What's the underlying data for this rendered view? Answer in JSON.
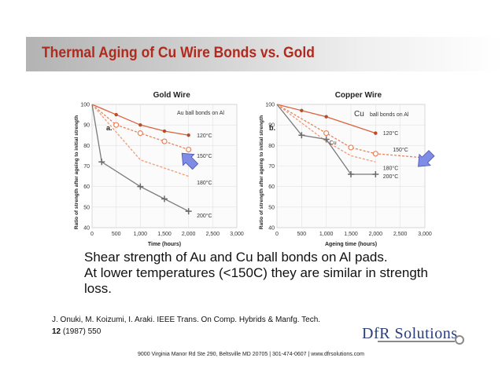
{
  "slide": {
    "title": "Thermal Aging of Cu Wire Bonds vs. Gold",
    "caption": [
      "Shear strength of Au and Cu ball bonds on Al pads.",
      "At lower temperatures (<150C) they are similar in strength",
      "loss."
    ],
    "citation": {
      "authors": "J. Onuki, M. Koizumi, I. Araki. IEEE Trans. On Comp. Hybrids & Manfg. Tech.",
      "volume": "12",
      "rest": " (1987) 550"
    },
    "footer": "9000 Virginia Manor Rd Ste 290, Beltsville MD 20705 | 301-474-0607 | www.dfrsolutions.com",
    "logo": "DfR Solutions"
  },
  "chart_data": [
    {
      "type": "line",
      "title": "Gold Wire",
      "subtitle": "Au ball bonds on Al",
      "panel_label": "a.",
      "xlabel": "Time (hours)",
      "ylabel": "Ratio of strength after ageing to initial strength",
      "xlim": [
        0,
        3000
      ],
      "ylim": [
        40,
        100
      ],
      "xticks": [
        0,
        500,
        1000,
        1500,
        2000,
        2500,
        3000
      ],
      "xtick_labels": [
        "0",
        "500",
        "1,000",
        "1,500",
        "2,000",
        "2,500",
        "3,000"
      ],
      "yticks": [
        40,
        50,
        60,
        70,
        80,
        90,
        100
      ],
      "grid": true,
      "series": [
        {
          "name": "120°C",
          "style": "solid",
          "color": "#d9623b",
          "marker": "dot",
          "x": [
            0,
            500,
            1000,
            1500,
            2000
          ],
          "y": [
            100,
            95,
            90,
            87,
            85
          ],
          "label_at": [
            2170,
            85
          ]
        },
        {
          "name": "150°C",
          "style": "dashed",
          "color": "#e8825a",
          "marker": "open",
          "x": [
            0,
            500,
            1000,
            1500,
            2000
          ],
          "y": [
            100,
            90,
            86,
            82,
            78
          ],
          "label_at": [
            2170,
            75
          ]
        },
        {
          "name": "180°C",
          "style": "dashed",
          "color": "#ef9a78",
          "marker": "none",
          "x": [
            0,
            1000,
            2000
          ],
          "y": [
            100,
            73,
            65
          ],
          "label_at": [
            2170,
            62
          ]
        },
        {
          "name": "200°C",
          "style": "solid",
          "color": "#7a7a7a",
          "marker": "cross",
          "x": [
            0,
            200,
            1000,
            1500,
            2000
          ],
          "y": [
            100,
            72,
            60,
            54,
            48
          ],
          "label_at": [
            2170,
            46
          ]
        }
      ],
      "annotations": [
        {
          "text": "arrow",
          "at": [
            2000,
            73
          ]
        }
      ]
    },
    {
      "type": "line",
      "title": "Copper Wire",
      "subtitle_prefix": "Cu",
      "subtitle": "ball bonds on Al",
      "panel_label": "b.",
      "xlabel": "Ageing time (hours)",
      "ylabel": "Ratio of strength after ageing to initial strength",
      "xlim": [
        0,
        3000
      ],
      "ylim": [
        40,
        100
      ],
      "xticks": [
        0,
        500,
        1000,
        1500,
        2000,
        2500,
        3000
      ],
      "xtick_labels": [
        "0",
        "500",
        "1,000",
        "1,500",
        "2,000",
        "2,500",
        "3,000"
      ],
      "yticks": [
        40,
        50,
        60,
        70,
        80,
        90,
        100
      ],
      "grid": true,
      "series": [
        {
          "name": "120°C",
          "style": "solid",
          "color": "#d9623b",
          "marker": "dot",
          "x": [
            0,
            500,
            1000,
            2000
          ],
          "y": [
            100,
            97,
            94,
            86
          ],
          "label_at": [
            2150,
            86
          ]
        },
        {
          "name": "150°C",
          "style": "dashed",
          "color": "#e8825a",
          "marker": "open",
          "x": [
            0,
            1000,
            1500,
            2000,
            3000
          ],
          "y": [
            100,
            86,
            79,
            76,
            74
          ],
          "label_at": [
            2350,
            78
          ]
        },
        {
          "name": "180°C",
          "style": "dashed",
          "color": "#ef9a78",
          "marker": "none",
          "x": [
            0,
            1000,
            1500,
            2000
          ],
          "y": [
            100,
            82,
            75,
            72
          ],
          "label_at": [
            2150,
            69
          ]
        },
        {
          "name": "200°C",
          "style": "solid",
          "color": "#7a7a7a",
          "marker": "cross",
          "x": [
            0,
            500,
            1000,
            1500,
            2000
          ],
          "y": [
            100,
            85,
            83,
            66,
            66
          ],
          "label_at": [
            2150,
            65
          ]
        }
      ],
      "annotations": [
        {
          "text": "Cu",
          "at": [
            1000,
            82
          ]
        },
        {
          "text": "arrow",
          "at": [
            3000,
            73
          ]
        }
      ]
    }
  ]
}
